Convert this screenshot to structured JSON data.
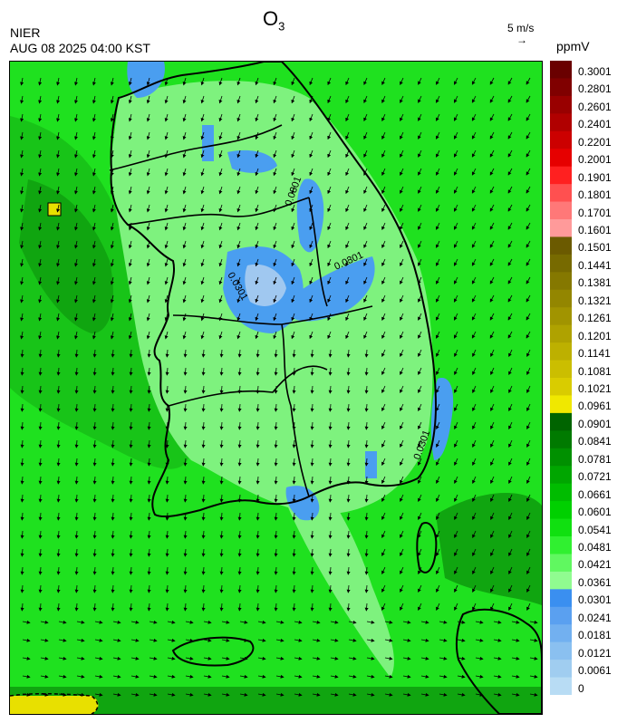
{
  "header": {
    "agency": "NIER",
    "datetime": "AUG 08 2025 04:00 KST",
    "title_main": "O",
    "title_sub": "3",
    "wind_reference": "5 m/s",
    "wind_arrow": "→",
    "unit": "ppmV"
  },
  "map": {
    "contour_label": "0.0301",
    "colors": {
      "background": "#1fe11f",
      "dark_green": "#10a510",
      "mid_green": "#18c418",
      "light_green": "#7ef27e",
      "blue": "#4a9ef0",
      "light_blue": "#a0c8f0",
      "yellow": "#e8e000"
    }
  },
  "legend": {
    "labels": [
      "0.3001",
      "0.2801",
      "0.2601",
      "0.2401",
      "0.2201",
      "0.2001",
      "0.1901",
      "0.1801",
      "0.1701",
      "0.1601",
      "0.1501",
      "0.1441",
      "0.1381",
      "0.1321",
      "0.1261",
      "0.1201",
      "0.1141",
      "0.1081",
      "0.1021",
      "0.0961",
      "0.0901",
      "0.0841",
      "0.0781",
      "0.0721",
      "0.0661",
      "0.0601",
      "0.0541",
      "0.0481",
      "0.0421",
      "0.0361",
      "0.0301",
      "0.0241",
      "0.0181",
      "0.0121",
      "0.0061",
      "0"
    ],
    "colors": [
      "#6a0000",
      "#800000",
      "#990000",
      "#b00000",
      "#cc0000",
      "#e60000",
      "#ff2020",
      "#ff5050",
      "#ff7878",
      "#ff9a9a",
      "#6b5a00",
      "#776a00",
      "#857800",
      "#938600",
      "#a19400",
      "#afa200",
      "#bdb000",
      "#cbbe00",
      "#d9cc00",
      "#f0e800",
      "#006400",
      "#007a00",
      "#009000",
      "#00a600",
      "#00bc00",
      "#00d000",
      "#10e010",
      "#30f030",
      "#60f860",
      "#90fc90",
      "#3a8ff0",
      "#5aa0f0",
      "#72b0f0",
      "#8ac0f0",
      "#a0cdf0",
      "#b8dcf4"
    ]
  }
}
